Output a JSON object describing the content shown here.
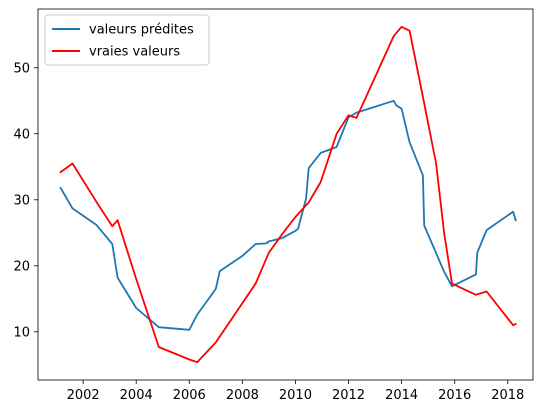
{
  "chart_data": {
    "type": "line",
    "title": "",
    "xlabel": "",
    "ylabel": "",
    "xlim": [
      2000.3,
      2018.95
    ],
    "ylim": [
      2.7,
      58.9
    ],
    "xticks": [
      2002,
      2004,
      2006,
      2008,
      2010,
      2012,
      2014,
      2016,
      2018
    ],
    "yticks": [
      10,
      20,
      30,
      40,
      50
    ],
    "grid": false,
    "legend": {
      "position": "top-left"
    },
    "series": [
      {
        "name": "valeurs prédites",
        "color": "#1f77b4",
        "x": [
          2001.15,
          2001.6,
          2002.5,
          2003.1,
          2003.3,
          2004.0,
          2004.85,
          2006.0,
          2006.3,
          2007.0,
          2007.15,
          2008.0,
          2008.5,
          2008.9,
          2009.0,
          2009.5,
          2010.0,
          2010.1,
          2010.4,
          2010.5,
          2010.95,
          2011.55,
          2012.0,
          2012.3,
          2013.7,
          2013.8,
          2014.0,
          2014.3,
          2014.8,
          2014.85,
          2015.6,
          2015.9,
          2016.8,
          2016.85,
          2017.2,
          2018.2,
          2018.3
        ],
        "y": [
          31.8,
          28.7,
          26.2,
          23.3,
          18.2,
          13.6,
          10.7,
          10.3,
          12.6,
          16.5,
          19.2,
          21.5,
          23.3,
          23.4,
          23.7,
          24.2,
          25.3,
          25.6,
          30.2,
          34.8,
          37.1,
          38.0,
          42.5,
          43.2,
          45.0,
          44.3,
          43.8,
          38.7,
          33.7,
          26.1,
          19.1,
          16.9,
          18.7,
          22.0,
          25.4,
          28.2,
          26.9
        ]
      },
      {
        "name": "vraies valeurs",
        "color": "#ff0000",
        "x": [
          2001.15,
          2001.6,
          2002.5,
          2003.1,
          2003.3,
          2004.0,
          2004.85,
          2006.0,
          2006.3,
          2007.0,
          2008.5,
          2009.0,
          2009.5,
          2010.0,
          2010.5,
          2010.95,
          2011.55,
          2012.0,
          2012.3,
          2013.7,
          2014.0,
          2014.3,
          2014.8,
          2015.3,
          2015.6,
          2015.9,
          2016.8,
          2017.2,
          2018.2,
          2018.3
        ],
        "y": [
          34.2,
          35.5,
          29.7,
          26.0,
          26.9,
          18.0,
          7.7,
          5.8,
          5.4,
          8.4,
          17.3,
          22.0,
          24.8,
          27.4,
          29.6,
          32.7,
          40.0,
          42.8,
          42.4,
          54.8,
          56.2,
          55.6,
          45.6,
          35.5,
          25.0,
          17.3,
          15.6,
          16.1,
          11.0,
          11.2
        ]
      }
    ]
  }
}
